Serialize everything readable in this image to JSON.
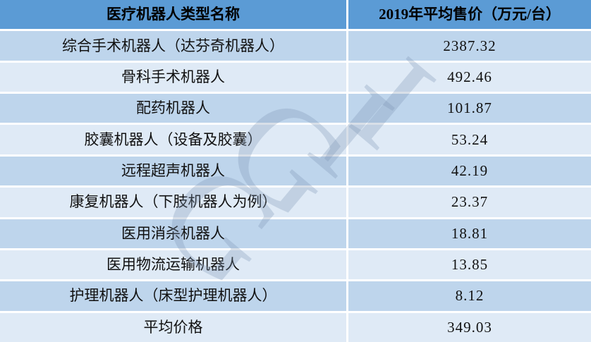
{
  "chart_data": {
    "type": "table",
    "columns": [
      "医疗机器人类型名称",
      "2019年平均售价（万元/台）"
    ],
    "rows": [
      {
        "type": "综合手术机器人（达芬奇机器人）",
        "price": 2387.32
      },
      {
        "type": "骨科手术机器人",
        "price": 492.46
      },
      {
        "type": "配药机器人",
        "price": 101.87
      },
      {
        "type": "胶囊机器人（设备及胶囊）",
        "price": 53.24
      },
      {
        "type": "远程超声机器人",
        "price": 42.19
      },
      {
        "type": "康复机器人（下肢机器人为例）",
        "price": 23.37
      },
      {
        "type": "医用消杀机器人",
        "price": 18.81
      },
      {
        "type": "医用物流运输机器人",
        "price": 13.85
      },
      {
        "type": "护理机器人（床型护理机器人）",
        "price": 8.12
      },
      {
        "type": "平均价格",
        "price": 349.03
      }
    ],
    "title": "",
    "legend": "none",
    "grid": "white 3px separators between banded cells"
  },
  "watermark": {
    "text": "GGII",
    "letters": [
      "G",
      "G",
      "I",
      "I"
    ]
  },
  "colors": {
    "header_bg": "#5b9bd5",
    "row_band_medium": "#bed5ec",
    "row_band_light": "#dfeaf6",
    "text": "#000000",
    "separator": "#ffffff",
    "watermark": "rgba(125,148,180,0.30)"
  }
}
